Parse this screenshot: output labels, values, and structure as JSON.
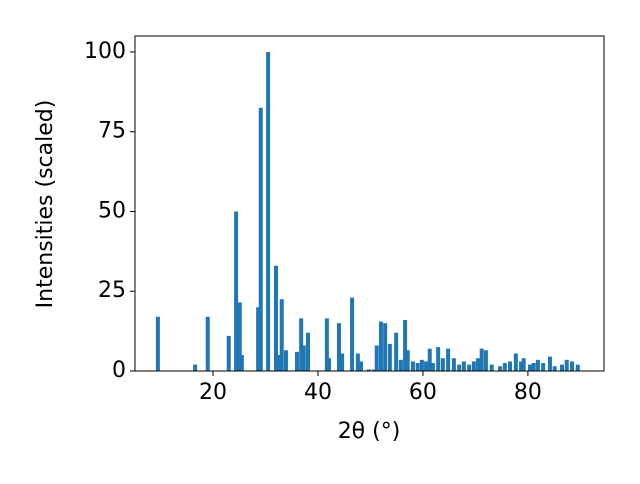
{
  "chart_data": {
    "type": "bar",
    "x_label": "2θ (°)",
    "y_label": "Intensities (scaled)",
    "color": "#1f77b4",
    "x": [
      9.5,
      16.6,
      19.0,
      23.0,
      24.4,
      25.1,
      25.5,
      28.6,
      29.1,
      30.5,
      32.0,
      32.6,
      33.1,
      33.9,
      36.0,
      36.8,
      37.3,
      38.1,
      41.7,
      42.1,
      44.0,
      44.6,
      46.5,
      47.6,
      48.2,
      49.7,
      50.7,
      51.2,
      52.0,
      52.8,
      53.7,
      54.9,
      55.8,
      56.6,
      57.1,
      58.1,
      59.0,
      59.8,
      60.6,
      61.3,
      61.9,
      62.9,
      63.8,
      64.8,
      65.9,
      66.9,
      67.8,
      68.8,
      69.7,
      70.5,
      71.2,
      72.0,
      73.1,
      74.7,
      75.6,
      76.6,
      77.7,
      78.7,
      79.2,
      80.4,
      81.1,
      81.9,
      82.9,
      84.2,
      85.1,
      86.5,
      87.4,
      88.4,
      89.5
    ],
    "values": [
      17,
      2,
      17,
      11,
      50,
      21.5,
      5,
      20,
      82.5,
      100,
      33,
      5,
      22.5,
      6.5,
      6,
      16.5,
      8,
      12,
      16.5,
      4,
      15,
      5.5,
      23,
      5.5,
      3,
      0.5,
      0.5,
      8,
      15.5,
      15,
      8.5,
      12,
      3.5,
      16,
      6.5,
      3,
      2.5,
      3.5,
      3,
      7,
      2.5,
      7.5,
      4,
      7,
      4,
      2,
      3,
      2,
      3,
      4,
      7,
      6.5,
      2,
      1.5,
      2.5,
      3,
      5.5,
      3,
      4,
      2,
      2.5,
      3.5,
      2.5,
      4.5,
      1.5,
      2,
      3.5,
      3,
      2
    ],
    "xlim": [
      5.14,
      94.5
    ],
    "xticks": [
      20,
      40,
      60,
      80
    ],
    "ylim": [
      0,
      105
    ],
    "yticks": [
      0,
      25,
      50,
      75,
      100
    ]
  }
}
